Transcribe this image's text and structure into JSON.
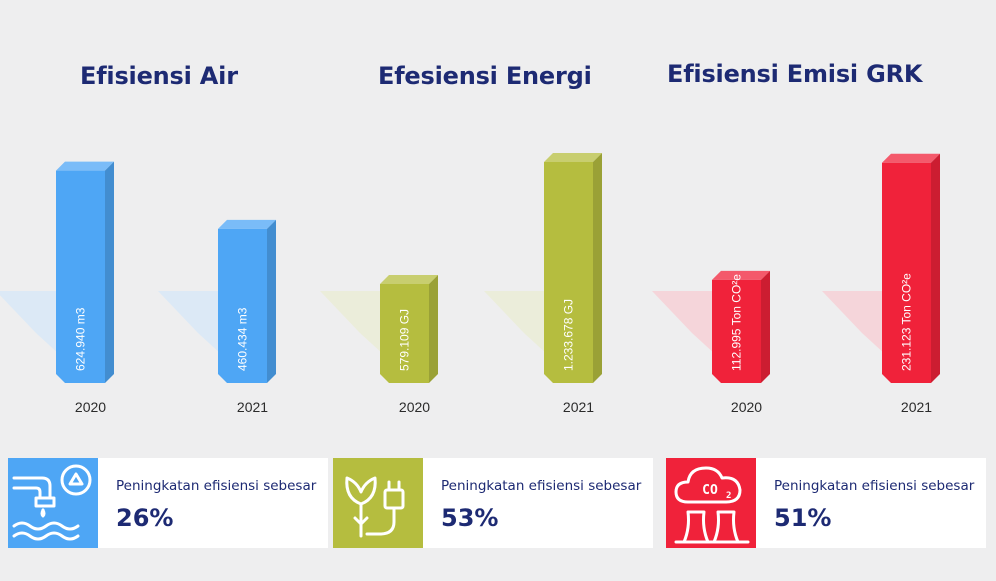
{
  "colors": {
    "air": "#4ea6f5",
    "energi": "#b5bd3f",
    "emisi": "#f0223a",
    "title": "#1d2a73",
    "background": "#eeeeef"
  },
  "chart_data": [
    {
      "type": "bar",
      "title": "Efisiensi Air",
      "categories": [
        "2020",
        "2021"
      ],
      "values": [
        624940,
        460434
      ],
      "value_labels": [
        "624.940 m3",
        "460.434 m3"
      ],
      "ylim": [
        0,
        700000
      ]
    },
    {
      "type": "bar",
      "title": "Efesiensi Energi",
      "categories": [
        "2020",
        "2021"
      ],
      "values": [
        579109,
        1233678
      ],
      "value_labels": [
        "579.109 GJ",
        "1.233.678 GJ"
      ],
      "ylim": [
        0,
        1330000
      ]
    },
    {
      "type": "bar",
      "title": "Efisiensi Emisi GRK",
      "categories": [
        "2020",
        "2021"
      ],
      "values": [
        112995,
        231123
      ],
      "value_labels": [
        "112.995  Ton CO²e",
        "231.123 Ton CO²e"
      ],
      "ylim": [
        0,
        250000
      ]
    }
  ],
  "cards": [
    {
      "label": "Peningkatan efisiensi sebesar",
      "value": "26%",
      "icon": "water-recycle-icon"
    },
    {
      "label": "Peningkatan efisiensi sebesar",
      "value": "53%",
      "icon": "leaf-plug-icon"
    },
    {
      "label": "Peningkatan efisiensi sebesar",
      "value": "51%",
      "icon": "co2-factory-icon"
    }
  ]
}
